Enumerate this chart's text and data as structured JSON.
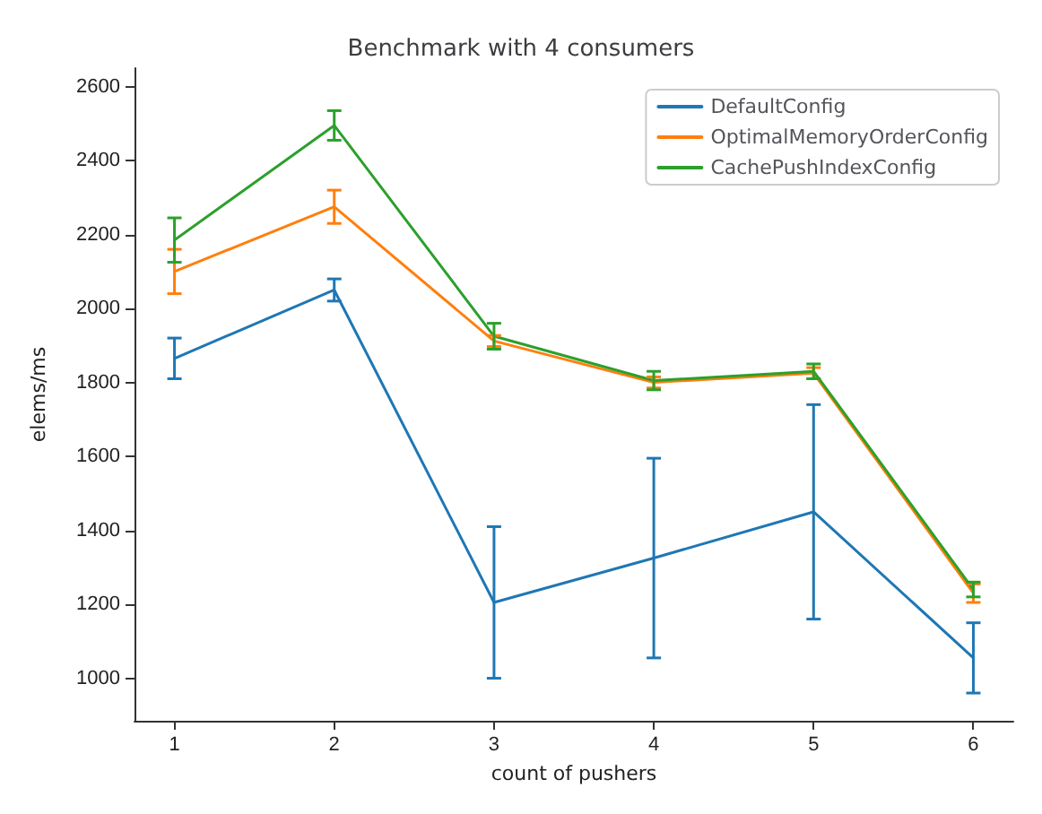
{
  "chart_data": {
    "type": "line",
    "title": "Benchmark with 4 consumers",
    "xlabel": "count of pushers",
    "ylabel": "elems/ms",
    "x": [
      1,
      2,
      3,
      4,
      5,
      6
    ],
    "series": [
      {
        "name": "DefaultConfig",
        "color": "#1f77b4",
        "values": [
          1865,
          2050,
          1205,
          1325,
          1450,
          1055
        ],
        "errors": [
          55,
          30,
          205,
          270,
          290,
          95
        ]
      },
      {
        "name": "OptimalMemoryOrderConfig",
        "color": "#ff7f0e",
        "values": [
          2100,
          2275,
          1912,
          1800,
          1825,
          1230
        ],
        "errors": [
          60,
          45,
          15,
          15,
          15,
          25
        ]
      },
      {
        "name": "CachePushIndexConfig",
        "color": "#2ca02c",
        "values": [
          2185,
          2495,
          1925,
          1805,
          1830,
          1240
        ],
        "errors": [
          60,
          40,
          35,
          25,
          20,
          20
        ]
      }
    ],
    "xlim": [
      0.75,
      6.25
    ],
    "xticks": [
      1,
      2,
      3,
      4,
      5,
      6
    ],
    "ylim": [
      885,
      2650
    ],
    "yticks": [
      1000,
      1200,
      1400,
      1600,
      1800,
      2000,
      2200,
      2400,
      2600
    ],
    "grid": false,
    "legend": "top right",
    "marker": "none",
    "line_style": "solid"
  }
}
